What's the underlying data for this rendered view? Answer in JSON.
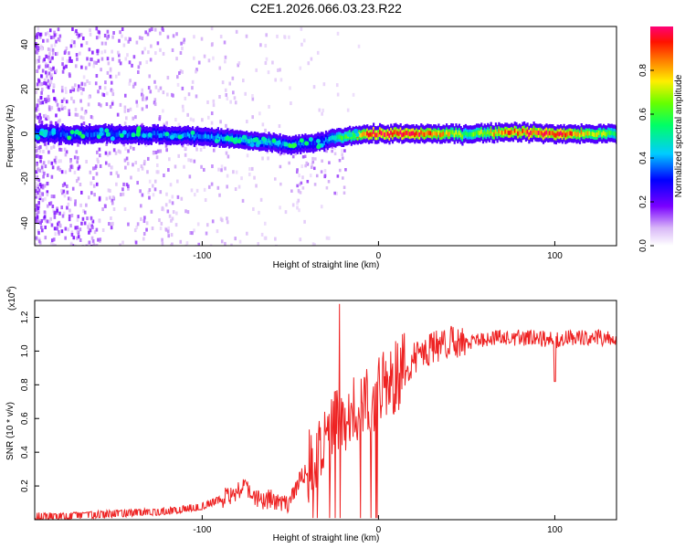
{
  "title": "C2E1.2026.066.03.23.R22",
  "chart_data": [
    {
      "type": "heatmap",
      "title": "C2E1.2026.066.03.23.R22",
      "xlabel": "Height of straight line (km)",
      "ylabel": "Frequency (Hz)",
      "xlim": [
        -195,
        135
      ],
      "ylim": [
        -50,
        48
      ],
      "xticks": [
        -100,
        0,
        100
      ],
      "xtick_labels": [
        "-100",
        "0",
        "100"
      ],
      "yticks": [
        -40,
        -20,
        0,
        20,
        40
      ],
      "ytick_labels": [
        "-40",
        "-20",
        "0",
        "20",
        "40"
      ],
      "colorbar": {
        "label": "Normalized spectral amplitude",
        "range": [
          0,
          1
        ],
        "ticks": [
          0,
          0.2,
          0.4,
          0.6,
          0.8
        ],
        "tick_labels": [
          "0.0",
          "0.2",
          "0.4",
          "0.6",
          "0.8"
        ]
      },
      "ridge": {
        "description_x": [
          -195,
          -150,
          -100,
          -75,
          -50,
          -35,
          -25,
          -10,
          0,
          25,
          50,
          75,
          100,
          135
        ],
        "center_freq_hz": [
          0,
          0,
          -1,
          -3,
          -5,
          -4,
          -2,
          0,
          0,
          0,
          0,
          1,
          0,
          0
        ],
        "peak_amplitude": [
          0.35,
          0.35,
          0.4,
          0.45,
          0.4,
          0.3,
          0.5,
          0.85,
          0.95,
          0.95,
          0.6,
          0.9,
          0.95,
          0.6
        ]
      }
    },
    {
      "type": "line",
      "xlabel": "Height of straight line (km)",
      "ylabel": "SNR (10 * v/v)",
      "scale_label": "(x10",
      "scale_exp": "4",
      "scale_close": ")",
      "xlim": [
        -195,
        135
      ],
      "ylim": [
        0,
        1.3
      ],
      "xticks": [
        -100,
        0,
        100
      ],
      "xtick_labels": [
        "-100",
        "0",
        "100"
      ],
      "yticks": [
        0.2,
        0.4,
        0.6,
        0.8,
        1.0,
        1.2
      ],
      "ytick_labels": [
        "0.2",
        "0.4",
        "0.6",
        "0.8",
        "1.0",
        "1.2"
      ],
      "series": [
        {
          "name": "SNR",
          "color": "#ee2222",
          "x": [
            -195,
            -180,
            -160,
            -140,
            -120,
            -100,
            -90,
            -80,
            -75,
            -70,
            -60,
            -50,
            -45,
            -40,
            -35,
            -30,
            -25,
            -20,
            -15,
            -10,
            -5,
            0,
            10,
            20,
            30,
            40,
            50,
            60,
            70,
            80,
            90,
            100,
            110,
            120,
            135
          ],
          "y": [
            0.02,
            0.02,
            0.03,
            0.04,
            0.05,
            0.08,
            0.12,
            0.17,
            0.2,
            0.12,
            0.12,
            0.1,
            0.22,
            0.3,
            0.4,
            0.45,
            0.55,
            0.6,
            0.65,
            0.7,
            0.72,
            0.75,
            0.85,
            0.95,
            1.02,
            1.05,
            1.06,
            1.07,
            1.08,
            1.08,
            1.08,
            1.06,
            1.08,
            1.08,
            1.08
          ]
        }
      ],
      "annotations": [
        {
          "x": -22,
          "y": 1.28,
          "label": "spike"
        },
        {
          "x": 100,
          "y": 0.82,
          "label": "dip"
        }
      ]
    }
  ]
}
